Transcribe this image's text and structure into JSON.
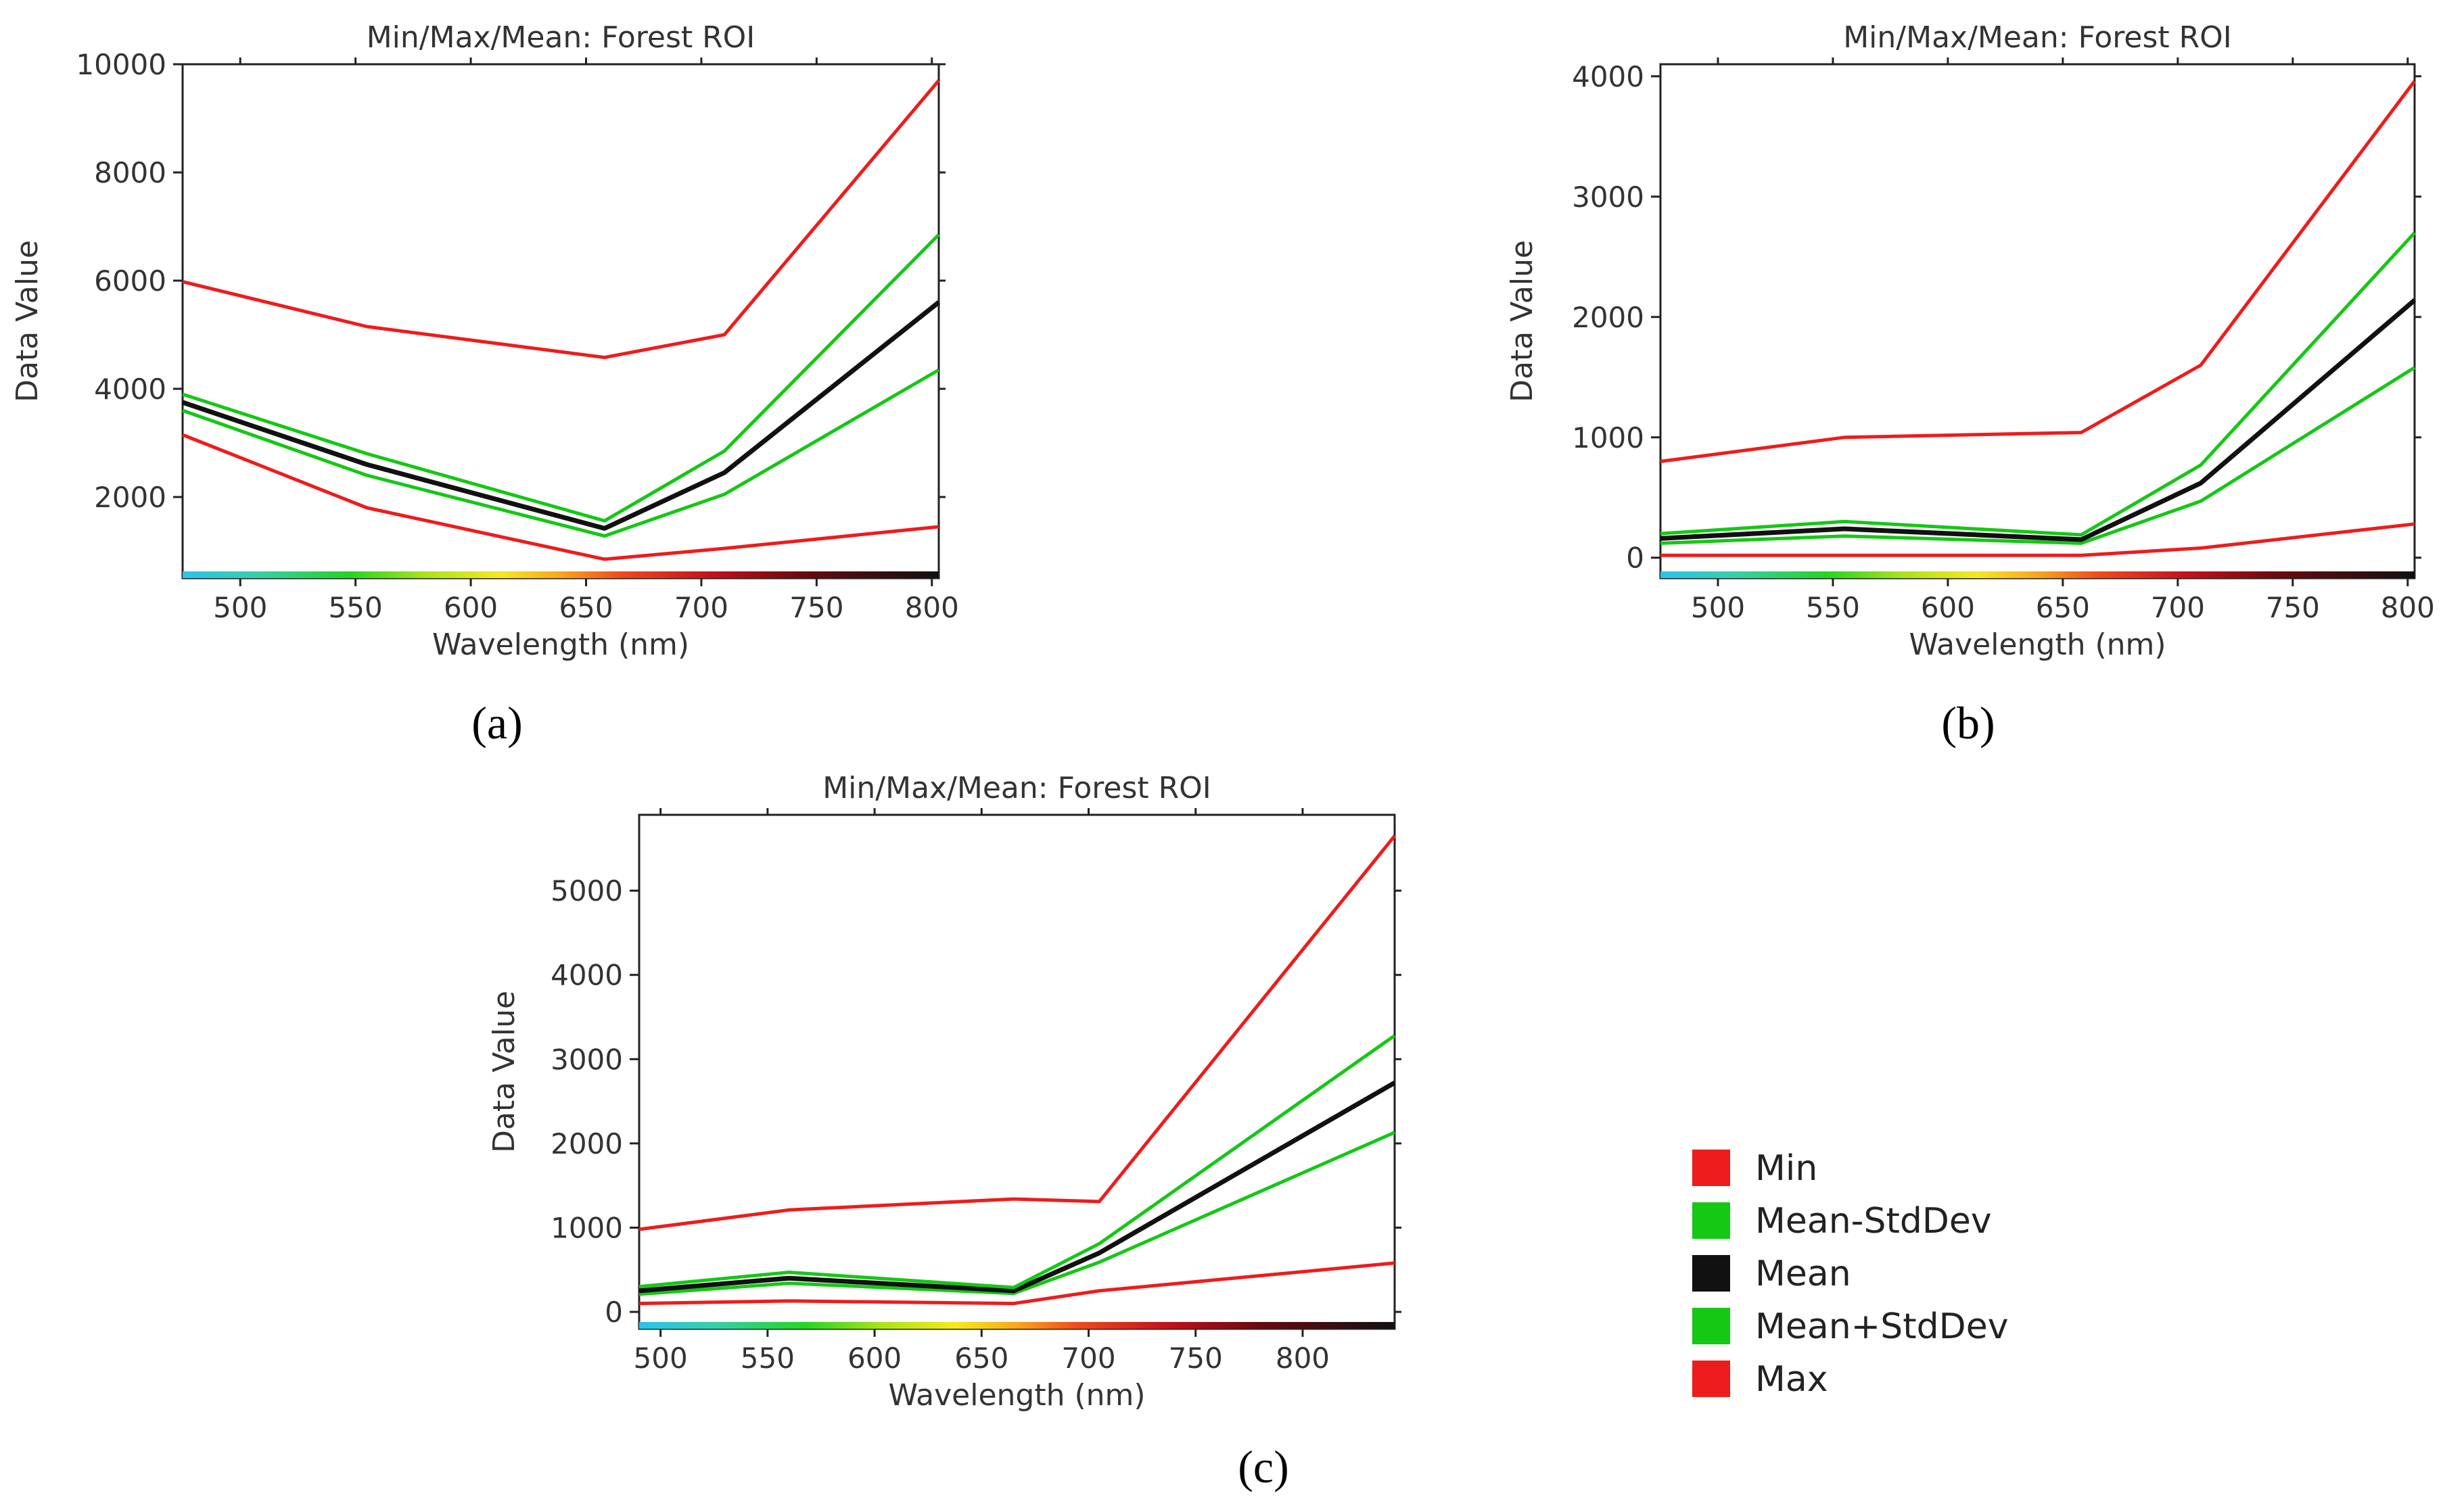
{
  "panel_labels": [
    "(a)",
    "(b)",
    "(c)"
  ],
  "legend": {
    "items": [
      {
        "label": "Min",
        "color": "#ee1c1c"
      },
      {
        "label": "Mean-StdDev",
        "color": "#14c814"
      },
      {
        "label": "Mean",
        "color": "#111111"
      },
      {
        "label": "Mean+StdDev",
        "color": "#14c814"
      },
      {
        "label": "Max",
        "color": "#ee1c1c"
      }
    ]
  },
  "chart_data": [
    {
      "type": "line",
      "title": "Min/Max/Mean: Forest ROI",
      "xlabel": "Wavelength (nm)",
      "ylabel": "Data Value",
      "xlim": [
        475,
        803
      ],
      "ylim": [
        500,
        10000
      ],
      "xticks": [
        500,
        550,
        600,
        650,
        700,
        750,
        800
      ],
      "yticks": [
        2000,
        4000,
        6000,
        8000,
        10000
      ],
      "x": [
        475,
        555,
        658,
        710,
        803
      ],
      "series": [
        {
          "name": "Min",
          "color": "#ee1c1c",
          "values": [
            3150,
            1800,
            850,
            1050,
            1450
          ]
        },
        {
          "name": "Mean-StdDev",
          "color": "#14c814",
          "values": [
            3600,
            2400,
            1280,
            2050,
            4350
          ]
        },
        {
          "name": "Mean",
          "color": "#111111",
          "values": [
            3750,
            2600,
            1420,
            2450,
            5600
          ]
        },
        {
          "name": "Mean+StdDev",
          "color": "#14c814",
          "values": [
            3900,
            2800,
            1560,
            2850,
            6850
          ]
        },
        {
          "name": "Max",
          "color": "#ee1c1c",
          "values": [
            5980,
            5150,
            4580,
            5000,
            9700
          ]
        }
      ]
    },
    {
      "type": "line",
      "title": "Min/Max/Mean: Forest ROI",
      "xlabel": "Wavelength (nm)",
      "ylabel": "Data Value",
      "xlim": [
        475,
        803
      ],
      "ylim": [
        -170,
        4100
      ],
      "xticks": [
        500,
        550,
        600,
        650,
        700,
        750,
        800
      ],
      "yticks": [
        0,
        1000,
        2000,
        3000,
        4000
      ],
      "x": [
        475,
        555,
        658,
        710,
        803
      ],
      "series": [
        {
          "name": "Min",
          "color": "#ee1c1c",
          "values": [
            20,
            20,
            20,
            80,
            280
          ]
        },
        {
          "name": "Mean-StdDev",
          "color": "#14c814",
          "values": [
            120,
            180,
            120,
            470,
            1580
          ]
        },
        {
          "name": "Mean",
          "color": "#111111",
          "values": [
            160,
            240,
            150,
            620,
            2140
          ]
        },
        {
          "name": "Mean+StdDev",
          "color": "#14c814",
          "values": [
            200,
            300,
            190,
            770,
            2700
          ]
        },
        {
          "name": "Max",
          "color": "#ee1c1c",
          "values": [
            800,
            1000,
            1040,
            1600,
            3960
          ]
        }
      ]
    },
    {
      "type": "line",
      "title": "Min/Max/Mean: Forest ROI",
      "xlabel": "Wavelength (nm)",
      "ylabel": "Data Value",
      "xlim": [
        490,
        843
      ],
      "ylim": [
        -200,
        5900
      ],
      "xticks": [
        500,
        550,
        600,
        650,
        700,
        750,
        800
      ],
      "yticks": [
        0,
        1000,
        2000,
        3000,
        4000,
        5000
      ],
      "x": [
        490,
        560,
        665,
        705,
        843
      ],
      "series": [
        {
          "name": "Min",
          "color": "#ee1c1c",
          "values": [
            100,
            130,
            100,
            250,
            580
          ]
        },
        {
          "name": "Mean-StdDev",
          "color": "#14c814",
          "values": [
            210,
            340,
            220,
            590,
            2130
          ]
        },
        {
          "name": "Mean",
          "color": "#111111",
          "values": [
            250,
            400,
            250,
            700,
            2720
          ]
        },
        {
          "name": "Mean+StdDev",
          "color": "#14c814",
          "values": [
            300,
            470,
            290,
            810,
            3280
          ]
        },
        {
          "name": "Max",
          "color": "#ee1c1c",
          "values": [
            980,
            1210,
            1340,
            1310,
            5650
          ]
        }
      ]
    }
  ]
}
